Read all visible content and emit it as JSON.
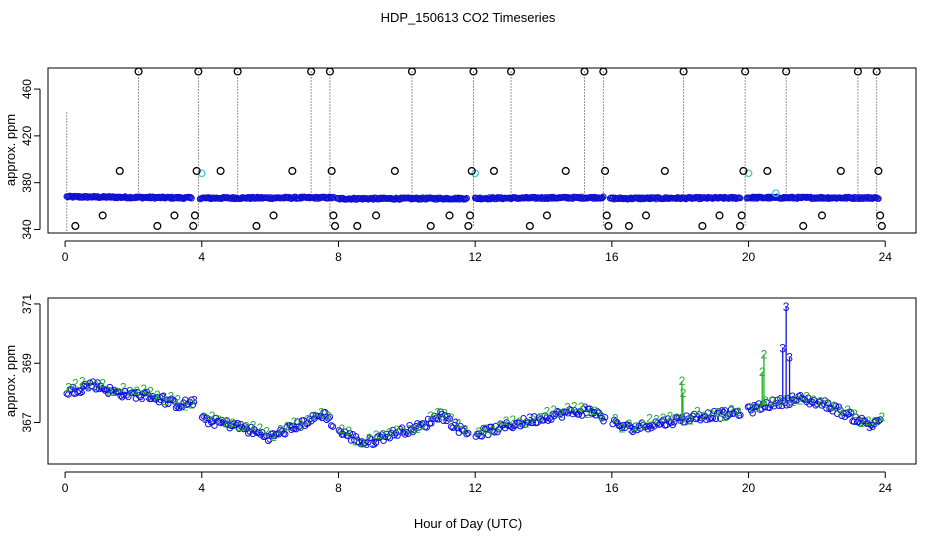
{
  "figure": {
    "title": "HDP_150613  CO2 Timeseries",
    "xlabel": "Hour of Day (UTC)"
  },
  "colors": {
    "baseline_blue": "#1010d0",
    "calibration_cyan": "#40c8d0",
    "spike_black": "#000000",
    "series_two_green": "#20b020",
    "series_three_blue": "#1010e0"
  },
  "chart_data": [
    {
      "type": "scatter",
      "panel": "top",
      "ylabel": "approx. ppm",
      "xlim": [
        -0.5,
        24.9
      ],
      "ylim": [
        337,
        478
      ],
      "x_ticks": [
        0,
        4,
        8,
        12,
        16,
        20,
        24
      ],
      "y_ticks": [
        340,
        380,
        420,
        460
      ],
      "baseline_segments": [
        {
          "x_start": 0.05,
          "x_end": 3.7,
          "level_start": 368.0,
          "level_end": 367.0
        },
        {
          "x_start": 3.95,
          "x_end": 7.85,
          "level_start": 366.8,
          "level_end": 367.2
        },
        {
          "x_start": 7.95,
          "x_end": 11.75,
          "level_start": 366.3,
          "level_end": 366.5
        },
        {
          "x_start": 12.0,
          "x_end": 15.75,
          "level_start": 366.6,
          "level_end": 367.3
        },
        {
          "x_start": 15.95,
          "x_end": 19.75,
          "level_start": 366.5,
          "level_end": 367.0
        },
        {
          "x_start": 19.95,
          "x_end": 23.8,
          "level_start": 367.2,
          "level_end": 367.0
        }
      ],
      "spike_markers": [
        {
          "x": 0.3,
          "y": 343
        },
        {
          "x": 1.1,
          "y": 352
        },
        {
          "x": 1.6,
          "y": 390
        },
        {
          "x": 2.15,
          "y": 475
        },
        {
          "x": 2.7,
          "y": 343
        },
        {
          "x": 3.2,
          "y": 352
        },
        {
          "x": 3.75,
          "y": 343
        },
        {
          "x": 3.8,
          "y": 352
        },
        {
          "x": 3.85,
          "y": 390
        },
        {
          "x": 3.9,
          "y": 475
        },
        {
          "x": 4.55,
          "y": 390
        },
        {
          "x": 5.05,
          "y": 475
        },
        {
          "x": 5.6,
          "y": 343
        },
        {
          "x": 6.1,
          "y": 352
        },
        {
          "x": 6.65,
          "y": 390
        },
        {
          "x": 7.2,
          "y": 475
        },
        {
          "x": 7.75,
          "y": 475
        },
        {
          "x": 7.8,
          "y": 390
        },
        {
          "x": 7.85,
          "y": 352
        },
        {
          "x": 7.9,
          "y": 343
        },
        {
          "x": 8.55,
          "y": 343
        },
        {
          "x": 9.1,
          "y": 352
        },
        {
          "x": 9.65,
          "y": 390
        },
        {
          "x": 10.15,
          "y": 475
        },
        {
          "x": 10.7,
          "y": 343
        },
        {
          "x": 11.25,
          "y": 352
        },
        {
          "x": 11.8,
          "y": 343
        },
        {
          "x": 11.85,
          "y": 352
        },
        {
          "x": 11.9,
          "y": 390
        },
        {
          "x": 11.95,
          "y": 475
        },
        {
          "x": 12.55,
          "y": 390
        },
        {
          "x": 13.05,
          "y": 475
        },
        {
          "x": 13.6,
          "y": 343
        },
        {
          "x": 14.1,
          "y": 352
        },
        {
          "x": 14.65,
          "y": 390
        },
        {
          "x": 15.2,
          "y": 475
        },
        {
          "x": 15.75,
          "y": 475
        },
        {
          "x": 15.8,
          "y": 390
        },
        {
          "x": 15.85,
          "y": 352
        },
        {
          "x": 15.9,
          "y": 343
        },
        {
          "x": 16.5,
          "y": 343
        },
        {
          "x": 17.0,
          "y": 352
        },
        {
          "x": 17.55,
          "y": 390
        },
        {
          "x": 18.1,
          "y": 475
        },
        {
          "x": 18.65,
          "y": 343
        },
        {
          "x": 19.15,
          "y": 352
        },
        {
          "x": 19.75,
          "y": 343
        },
        {
          "x": 19.8,
          "y": 352
        },
        {
          "x": 19.85,
          "y": 390
        },
        {
          "x": 19.9,
          "y": 475
        },
        {
          "x": 20.55,
          "y": 390
        },
        {
          "x": 21.1,
          "y": 475
        },
        {
          "x": 21.6,
          "y": 343
        },
        {
          "x": 22.15,
          "y": 352
        },
        {
          "x": 22.7,
          "y": 390
        },
        {
          "x": 23.2,
          "y": 475
        },
        {
          "x": 23.75,
          "y": 475
        },
        {
          "x": 23.8,
          "y": 390
        },
        {
          "x": 23.85,
          "y": 352
        },
        {
          "x": 23.9,
          "y": 343
        }
      ],
      "calibration_markers": [
        {
          "x": 4.0,
          "y": 388
        },
        {
          "x": 12.0,
          "y": 388
        },
        {
          "x": 20.0,
          "y": 388
        },
        {
          "x": 20.8,
          "y": 371
        }
      ],
      "dotted_drops": [
        {
          "x": 0.05,
          "y_top": 440,
          "y_bottom": 337
        },
        {
          "x": 2.15,
          "y_top": 475,
          "y_bottom": 367
        },
        {
          "x": 3.9,
          "y_top": 475,
          "y_bottom": 343
        },
        {
          "x": 5.05,
          "y_top": 475,
          "y_bottom": 367
        },
        {
          "x": 7.2,
          "y_top": 475,
          "y_bottom": 367
        },
        {
          "x": 7.75,
          "y_top": 475,
          "y_bottom": 343
        },
        {
          "x": 10.15,
          "y_top": 475,
          "y_bottom": 367
        },
        {
          "x": 11.95,
          "y_top": 475,
          "y_bottom": 343
        },
        {
          "x": 13.05,
          "y_top": 475,
          "y_bottom": 367
        },
        {
          "x": 15.2,
          "y_top": 475,
          "y_bottom": 367
        },
        {
          "x": 15.75,
          "y_top": 475,
          "y_bottom": 343
        },
        {
          "x": 18.1,
          "y_top": 475,
          "y_bottom": 367
        },
        {
          "x": 19.9,
          "y_top": 475,
          "y_bottom": 343
        },
        {
          "x": 21.1,
          "y_top": 475,
          "y_bottom": 367
        },
        {
          "x": 23.2,
          "y_top": 475,
          "y_bottom": 367
        },
        {
          "x": 23.75,
          "y_top": 475,
          "y_bottom": 343
        }
      ]
    },
    {
      "type": "scatter",
      "panel": "bottom",
      "ylabel": "approx. ppm",
      "xlim": [
        -0.5,
        24.9
      ],
      "ylim": [
        365.6,
        371.2
      ],
      "x_ticks": [
        0,
        4,
        8,
        12,
        16,
        20,
        24
      ],
      "y_ticks": [
        367,
        369,
        371
      ],
      "series": [
        {
          "name": "3",
          "marker": "circle",
          "color_key": "series_three_blue"
        },
        {
          "name": "2",
          "marker": "label",
          "color_key": "series_two_green"
        }
      ],
      "trend_knots": [
        [
          0.0,
          368.0
        ],
        [
          0.8,
          368.3
        ],
        [
          1.5,
          368.0
        ],
        [
          2.5,
          367.9
        ],
        [
          3.3,
          367.6
        ],
        [
          3.8,
          367.7
        ],
        [
          4.0,
          367.1
        ],
        [
          5.0,
          366.9
        ],
        [
          6.0,
          366.5
        ],
        [
          7.0,
          367.0
        ],
        [
          7.6,
          367.3
        ],
        [
          8.0,
          366.7
        ],
        [
          8.8,
          366.3
        ],
        [
          9.5,
          366.6
        ],
        [
          10.5,
          366.9
        ],
        [
          11.0,
          367.3
        ],
        [
          11.5,
          366.8
        ],
        [
          12.0,
          366.6
        ],
        [
          13.0,
          366.9
        ],
        [
          14.5,
          367.3
        ],
        [
          15.4,
          367.4
        ],
        [
          16.0,
          367.0
        ],
        [
          16.5,
          366.8
        ],
        [
          17.5,
          367.0
        ],
        [
          18.5,
          367.2
        ],
        [
          19.5,
          367.3
        ],
        [
          20.0,
          367.4
        ],
        [
          20.5,
          367.6
        ],
        [
          21.5,
          367.8
        ],
        [
          22.3,
          367.6
        ],
        [
          23.0,
          367.2
        ],
        [
          23.6,
          366.9
        ],
        [
          23.9,
          367.2
        ]
      ],
      "spikes": [
        {
          "series": "3",
          "x": 21.1,
          "y": 370.9
        },
        {
          "series": "3",
          "x": 21.0,
          "y": 369.5
        },
        {
          "series": "3",
          "x": 21.2,
          "y": 369.2
        },
        {
          "series": "2",
          "x": 20.45,
          "y": 369.3
        },
        {
          "series": "2",
          "x": 20.4,
          "y": 368.7
        },
        {
          "series": "2",
          "x": 18.05,
          "y": 368.4
        },
        {
          "series": "2",
          "x": 18.08,
          "y": 368.0
        }
      ]
    }
  ]
}
